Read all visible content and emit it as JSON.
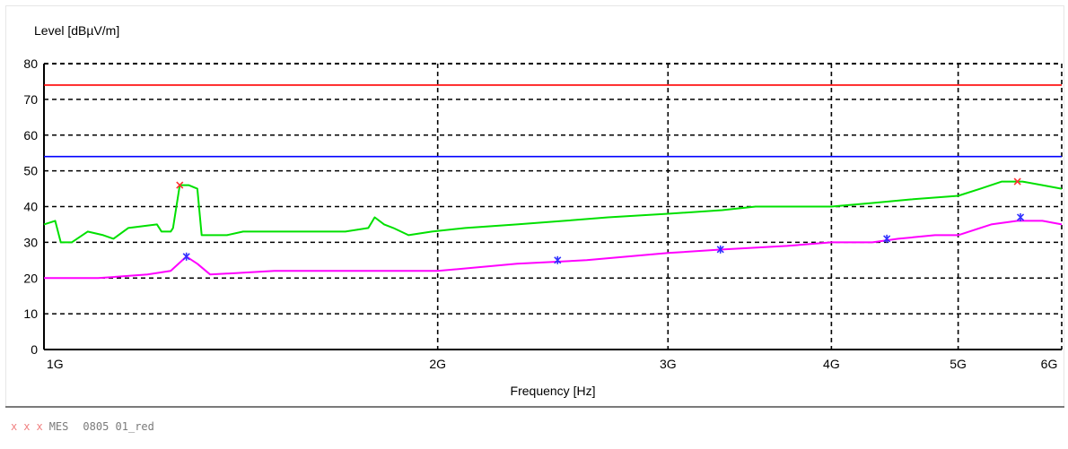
{
  "chart_data": {
    "type": "line",
    "ylabel": "Level [dBµV/m]",
    "xlabel": "Frequency [Hz]",
    "x_scale": "log",
    "xlim": [
      1000000000,
      6000000000
    ],
    "ylim": [
      0,
      80
    ],
    "y_ticks": [
      0,
      10,
      20,
      30,
      40,
      50,
      60,
      70,
      80
    ],
    "x_ticks": [
      {
        "value": 1000000000,
        "label": "1G"
      },
      {
        "value": 2000000000,
        "label": "2G"
      },
      {
        "value": 3000000000,
        "label": "3G"
      },
      {
        "value": 4000000000,
        "label": "4G"
      },
      {
        "value": 5000000000,
        "label": "5G"
      },
      {
        "value": 6000000000,
        "label": "6G"
      }
    ],
    "grid": true,
    "limit_lines": [
      {
        "value": 74,
        "color": "#ff0000"
      },
      {
        "value": 54,
        "color": "#0000ff"
      }
    ],
    "series": [
      {
        "color": "#00e000",
        "points": [
          [
            1000000000,
            35
          ],
          [
            1020000000,
            36
          ],
          [
            1030000000,
            30
          ],
          [
            1050000000,
            30
          ],
          [
            1080000000,
            33
          ],
          [
            1110000000,
            32
          ],
          [
            1130000000,
            31
          ],
          [
            1160000000,
            34
          ],
          [
            1220000000,
            35
          ],
          [
            1230000000,
            33
          ],
          [
            1250000000,
            33
          ],
          [
            1255000000,
            34
          ],
          [
            1270000000,
            46
          ],
          [
            1290000000,
            46
          ],
          [
            1310000000,
            45
          ],
          [
            1320000000,
            32
          ],
          [
            1380000000,
            32
          ],
          [
            1420000000,
            33
          ],
          [
            1500000000,
            33
          ],
          [
            1600000000,
            33
          ],
          [
            1700000000,
            33
          ],
          [
            1770000000,
            34
          ],
          [
            1790000000,
            37
          ],
          [
            1820000000,
            35
          ],
          [
            1850000000,
            34
          ],
          [
            1900000000,
            32
          ],
          [
            1980000000,
            33
          ],
          [
            2100000000,
            34
          ],
          [
            2300000000,
            35
          ],
          [
            2500000000,
            36
          ],
          [
            2700000000,
            37
          ],
          [
            3000000000,
            38
          ],
          [
            3300000000,
            39
          ],
          [
            3500000000,
            40
          ],
          [
            4000000000,
            40
          ],
          [
            4300000000,
            41
          ],
          [
            4600000000,
            42
          ],
          [
            5000000000,
            43
          ],
          [
            5200000000,
            45
          ],
          [
            5400000000,
            47
          ],
          [
            5600000000,
            47
          ],
          [
            5800000000,
            46
          ],
          [
            6000000000,
            45
          ]
        ]
      },
      {
        "color": "#ff00ff",
        "points": [
          [
            1000000000,
            20
          ],
          [
            1100000000,
            20
          ],
          [
            1200000000,
            21
          ],
          [
            1250000000,
            22
          ],
          [
            1285000000,
            26
          ],
          [
            1310000000,
            24
          ],
          [
            1340000000,
            21
          ],
          [
            1500000000,
            22
          ],
          [
            1800000000,
            22
          ],
          [
            2000000000,
            22
          ],
          [
            2300000000,
            24
          ],
          [
            2600000000,
            25
          ],
          [
            3000000000,
            27
          ],
          [
            3300000000,
            28
          ],
          [
            3700000000,
            29
          ],
          [
            4000000000,
            30
          ],
          [
            4300000000,
            30
          ],
          [
            4500000000,
            31
          ],
          [
            4800000000,
            32
          ],
          [
            5000000000,
            32
          ],
          [
            5300000000,
            35
          ],
          [
            5550000000,
            36
          ],
          [
            5800000000,
            36
          ],
          [
            6000000000,
            35
          ]
        ]
      }
    ],
    "markers": [
      {
        "x": 1270000000,
        "y": 46,
        "color": "#ff3030",
        "symbol": "x"
      },
      {
        "x": 5550000000,
        "y": 47,
        "color": "#ff3030",
        "symbol": "x"
      },
      {
        "x": 1285000000,
        "y": 26,
        "color": "#3030ff",
        "symbol": "*"
      },
      {
        "x": 2470000000,
        "y": 25,
        "color": "#3030ff",
        "symbol": "*"
      },
      {
        "x": 3290000000,
        "y": 28,
        "color": "#3030ff",
        "symbol": "*"
      },
      {
        "x": 4410000000,
        "y": 31,
        "color": "#3030ff",
        "symbol": "*"
      },
      {
        "x": 5580000000,
        "y": 37,
        "color": "#3030ff",
        "symbol": "*"
      }
    ]
  },
  "footer": {
    "marker_glyph": "x",
    "name": "MES",
    "id": "0805 01_red"
  }
}
